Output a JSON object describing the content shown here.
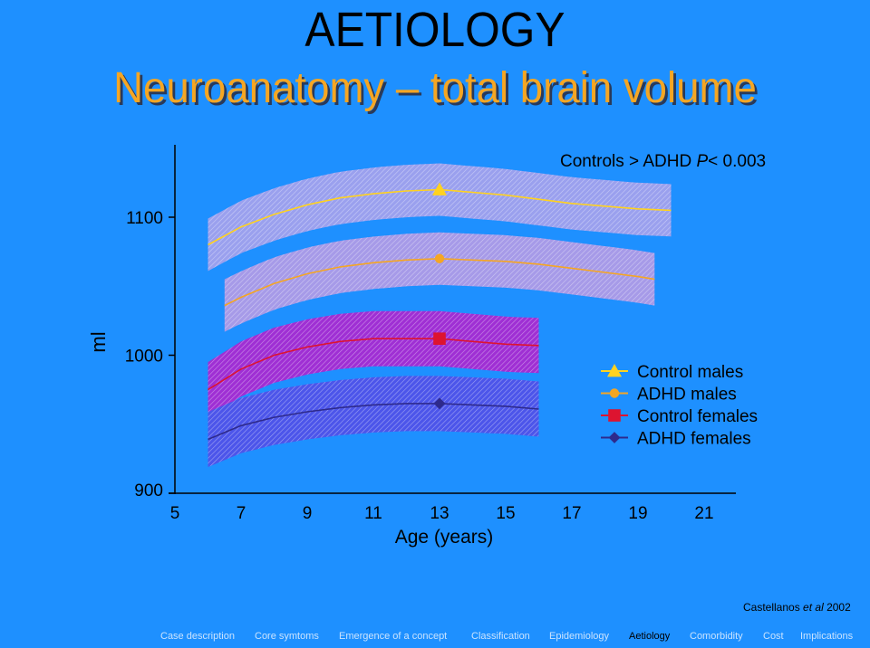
{
  "slide": {
    "title": "AETIOLOGY",
    "subtitle": "Neuroanatomy – total brain volume",
    "credit_author": "Castellanos ",
    "credit_etal": "et al",
    "credit_year": " 2002"
  },
  "nav": {
    "items": [
      "Case description",
      "Core symtoms",
      "Emergence of a concept",
      "Classification",
      "Epidemiology",
      "Aetiology",
      "Comorbidity",
      "Cost",
      "Implications"
    ],
    "active": "Aetiology"
  },
  "chart_data": {
    "type": "line",
    "annotation_prefix": "Controls > ADHD ",
    "annotation_p": "P",
    "annotation_suffix": "< 0.003",
    "ylabel": "ml",
    "xlabel": "Age  (years)",
    "xlim": [
      5,
      21
    ],
    "ylim": [
      900,
      1100
    ],
    "x_ticks": [
      5,
      7,
      9,
      11,
      13,
      15,
      17,
      19,
      21
    ],
    "y_ticks": [
      900,
      1000,
      1100
    ],
    "legend_position": "right",
    "series": [
      {
        "name": "Control males",
        "color": "#ffd21f",
        "band_color": "#9aa0ee",
        "marker": "triangle",
        "marker_x": 13,
        "marker_y": 1120,
        "x": [
          6,
          7,
          8,
          9,
          10,
          11,
          12,
          13,
          14,
          15,
          16,
          17,
          18,
          19,
          20
        ],
        "y": [
          1080,
          1093,
          1102,
          1109,
          1114,
          1117,
          1119,
          1120,
          1118,
          1116,
          1113,
          1110,
          1108,
          1106,
          1105
        ],
        "band_x": [
          6,
          20
        ],
        "band_half": 19
      },
      {
        "name": "ADHD males",
        "color": "#f5a623",
        "band_color": "#a69ae8",
        "marker": "circle",
        "marker_x": 13,
        "marker_y": 1070,
        "x": [
          6.5,
          7,
          8,
          9,
          10,
          11,
          12,
          13,
          14,
          15,
          16,
          17,
          18,
          19,
          19.5
        ],
        "y": [
          1036,
          1042,
          1052,
          1059,
          1064,
          1067,
          1069,
          1070,
          1069,
          1068,
          1066,
          1063,
          1060,
          1057,
          1055
        ],
        "band_x": [
          6.5,
          19.5
        ],
        "band_half": 19
      },
      {
        "name": "Control females",
        "color": "#dd1430",
        "band_color": "#9f2fd4",
        "marker": "square",
        "marker_x": 13,
        "marker_y": 1012,
        "x": [
          6,
          7,
          8,
          9,
          10,
          11,
          12,
          13,
          14,
          15,
          16
        ],
        "y": [
          975,
          990,
          1000,
          1006,
          1010,
          1012,
          1012,
          1012,
          1010,
          1008,
          1007
        ],
        "band_x": [
          6,
          16
        ],
        "band_half": 20
      },
      {
        "name": "ADHD females",
        "color": "#2e2a8c",
        "band_color": "#4c55ea",
        "marker": "diamond",
        "marker_x": 13,
        "marker_y": 965,
        "x": [
          6,
          7,
          8,
          9,
          10,
          11,
          12,
          13,
          14,
          15,
          16
        ],
        "y": [
          939,
          949,
          955,
          959,
          962,
          964,
          965,
          965,
          964,
          963,
          961
        ],
        "band_x": [
          6,
          16
        ],
        "band_half": 20
      }
    ]
  }
}
